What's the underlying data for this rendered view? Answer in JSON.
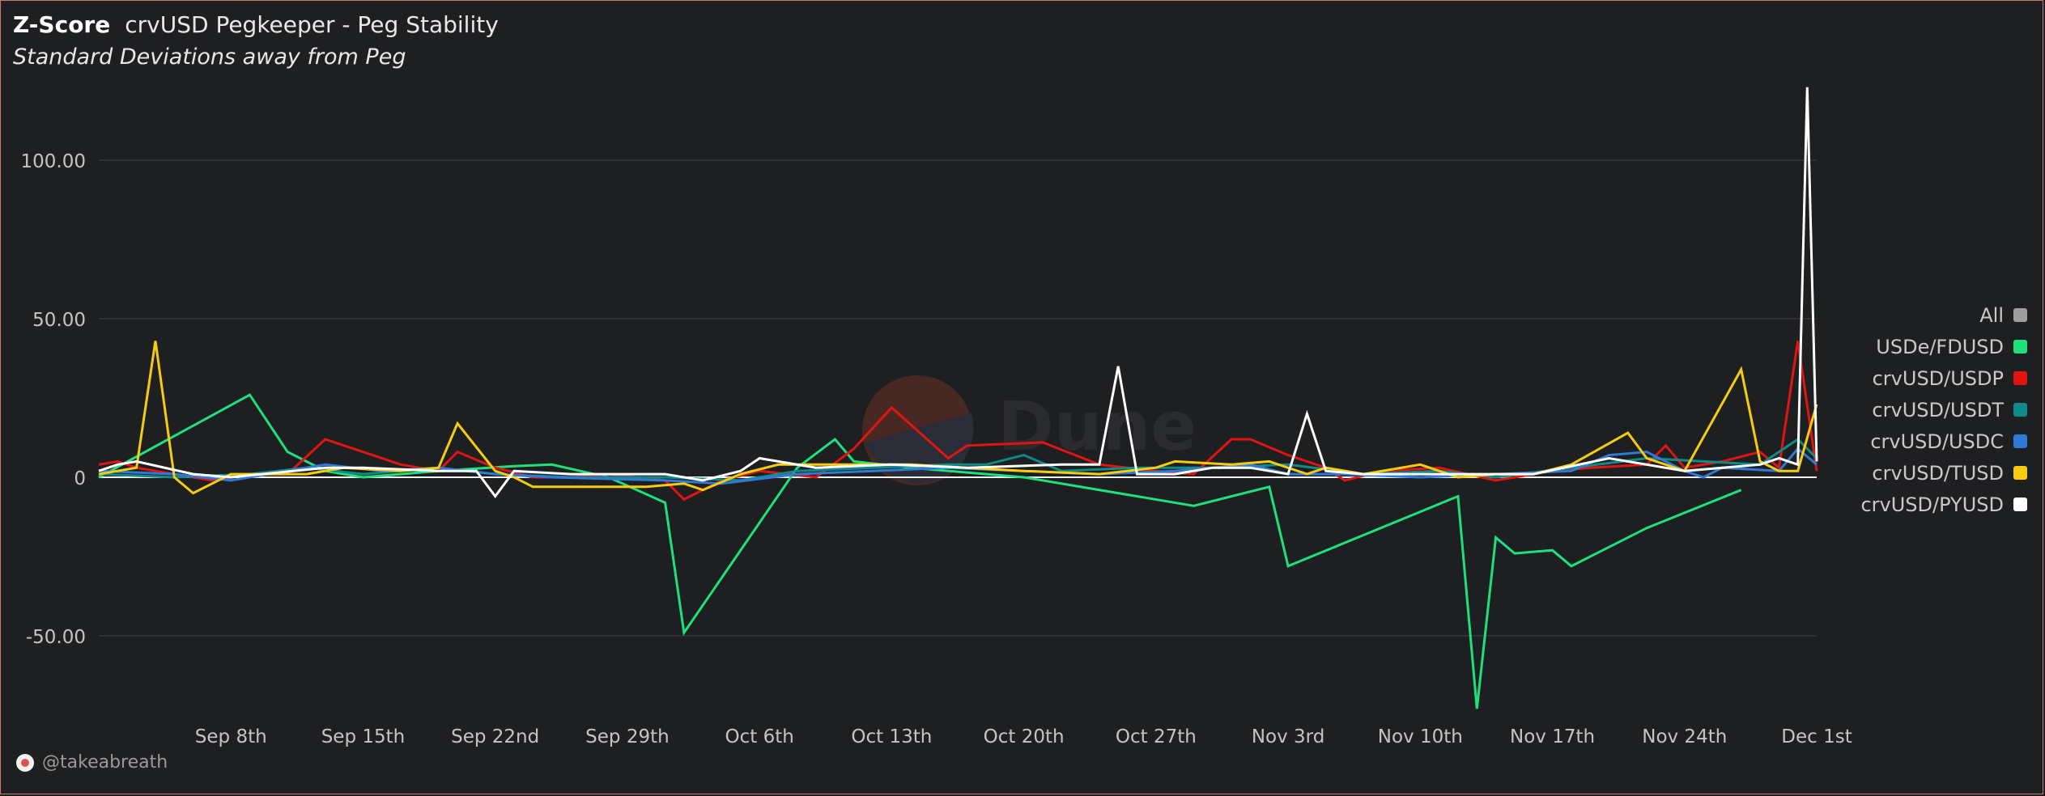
{
  "header": {
    "title_main": "Z-Score",
    "title_sub": "crvUSD Pegkeeper - Peg Stability",
    "subtitle": "Standard Deviations away from Peg"
  },
  "author": {
    "handle": "@takeabreath"
  },
  "watermark": {
    "text": "Dune"
  },
  "legend": {
    "items": [
      {
        "label": "All",
        "color": "#9e9e9e"
      },
      {
        "label": "USDe/FDUSD",
        "color": "#1fe07a"
      },
      {
        "label": "crvUSD/USDP",
        "color": "#e11414"
      },
      {
        "label": "crvUSD/USDT",
        "color": "#0e8b86"
      },
      {
        "label": "crvUSD/USDC",
        "color": "#2f79d9"
      },
      {
        "label": "crvUSD/TUSD",
        "color": "#f5cc10"
      },
      {
        "label": "crvUSD/PYUSD",
        "color": "#ffffff"
      }
    ]
  },
  "chart_data": {
    "type": "line",
    "title": "crvUSD Pegkeeper - Peg Stability",
    "subtitle": "Standard Deviations away from Peg",
    "x_type": "date",
    "xlim": [
      "2024-09-01",
      "2024-12-01"
    ],
    "ylim": [
      -75,
      125
    ],
    "y_ticks": [
      -50,
      0,
      50,
      100
    ],
    "y_tick_labels": [
      "-50.00",
      "0",
      "50.00",
      "100.00"
    ],
    "x_ticks": [
      "2024-09-08",
      "2024-09-15",
      "2024-09-22",
      "2024-09-29",
      "2024-10-06",
      "2024-10-13",
      "2024-10-20",
      "2024-10-27",
      "2024-11-03",
      "2024-11-10",
      "2024-11-17",
      "2024-11-24",
      "2024-12-01"
    ],
    "x_tick_labels": [
      "Sep 8th",
      "Sep 15th",
      "Sep 22nd",
      "Sep 29th",
      "Oct 6th",
      "Oct 13th",
      "Oct 20th",
      "Oct 27th",
      "Nov 3rd",
      "Nov 10th",
      "Nov 17th",
      "Nov 24th",
      "Dec 1st"
    ],
    "grid": true,
    "legend_position": "right",
    "series": [
      {
        "name": "USDe/FDUSD",
        "color": "#1fe07a",
        "points": [
          [
            "2024-09-01",
            0
          ],
          [
            "2024-09-09",
            26
          ],
          [
            "2024-09-11",
            8
          ],
          [
            "2024-09-13",
            2
          ],
          [
            "2024-09-15",
            0
          ],
          [
            "2024-09-19",
            2
          ],
          [
            "2024-09-23",
            3.5
          ],
          [
            "2024-09-25",
            4
          ],
          [
            "2024-09-28",
            0
          ],
          [
            "2024-10-01",
            -8
          ],
          [
            "2024-10-02",
            -49
          ],
          [
            "2024-10-08",
            3
          ],
          [
            "2024-10-10",
            12
          ],
          [
            "2024-10-11",
            5
          ],
          [
            "2024-10-14",
            3
          ],
          [
            "2024-10-20",
            0
          ],
          [
            "2024-10-29",
            -9
          ],
          [
            "2024-11-02",
            -3
          ],
          [
            "2024-11-03",
            -28
          ],
          [
            "2024-11-12",
            -6
          ],
          [
            "2024-11-13",
            -73
          ],
          [
            "2024-11-14",
            -19
          ],
          [
            "2024-11-15",
            -24
          ],
          [
            "2024-11-17",
            -23
          ],
          [
            "2024-11-18",
            -28
          ],
          [
            "2024-11-22",
            -16
          ],
          [
            "2024-11-27",
            -4
          ]
        ]
      },
      {
        "name": "crvUSD/USDP",
        "color": "#e11414",
        "points": [
          [
            "2024-09-01",
            4
          ],
          [
            "2024-09-02",
            5
          ],
          [
            "2024-09-03",
            3
          ],
          [
            "2024-09-05",
            1
          ],
          [
            "2024-09-07",
            -1
          ],
          [
            "2024-09-09",
            1
          ],
          [
            "2024-09-11",
            1
          ],
          [
            "2024-09-13",
            12
          ],
          [
            "2024-09-17",
            4
          ],
          [
            "2024-09-19",
            2
          ],
          [
            "2024-09-20",
            8
          ],
          [
            "2024-09-22",
            3
          ],
          [
            "2024-09-24",
            0
          ],
          [
            "2024-09-26",
            0
          ],
          [
            "2024-09-28",
            1
          ],
          [
            "2024-10-01",
            -1
          ],
          [
            "2024-10-02",
            -7
          ],
          [
            "2024-10-04",
            -1
          ],
          [
            "2024-10-06",
            2
          ],
          [
            "2024-10-09",
            0
          ],
          [
            "2024-10-11",
            9
          ],
          [
            "2024-10-13",
            22
          ],
          [
            "2024-10-16",
            6
          ],
          [
            "2024-10-17",
            10
          ],
          [
            "2024-10-21",
            11
          ],
          [
            "2024-10-24",
            4
          ],
          [
            "2024-10-27",
            2
          ],
          [
            "2024-10-29",
            1
          ],
          [
            "2024-10-31",
            12
          ],
          [
            "2024-11-01",
            12
          ],
          [
            "2024-11-03",
            7
          ],
          [
            "2024-11-05",
            3
          ],
          [
            "2024-11-06",
            -1
          ],
          [
            "2024-11-08",
            2
          ],
          [
            "2024-11-11",
            3
          ],
          [
            "2024-11-14",
            -1
          ],
          [
            "2024-11-17",
            2
          ],
          [
            "2024-11-19",
            3
          ],
          [
            "2024-11-22",
            4
          ],
          [
            "2024-11-23",
            10
          ],
          [
            "2024-11-24",
            3
          ],
          [
            "2024-11-26",
            5
          ],
          [
            "2024-11-28",
            8
          ],
          [
            "2024-11-29",
            3
          ],
          [
            "2024-11-30",
            43
          ],
          [
            "2024-12-01",
            2
          ]
        ]
      },
      {
        "name": "crvUSD/USDT",
        "color": "#0e8b86",
        "points": [
          [
            "2024-09-01",
            1
          ],
          [
            "2024-09-05",
            0
          ],
          [
            "2024-09-09",
            1
          ],
          [
            "2024-09-12",
            3
          ],
          [
            "2024-09-15",
            1
          ],
          [
            "2024-09-19",
            3
          ],
          [
            "2024-09-22",
            1
          ],
          [
            "2024-09-26",
            0
          ],
          [
            "2024-10-01",
            0
          ],
          [
            "2024-10-05",
            -1
          ],
          [
            "2024-10-08",
            2
          ],
          [
            "2024-10-12",
            3
          ],
          [
            "2024-10-16",
            4
          ],
          [
            "2024-10-18",
            4
          ],
          [
            "2024-10-20",
            7
          ],
          [
            "2024-10-22",
            2
          ],
          [
            "2024-10-26",
            3
          ],
          [
            "2024-10-30",
            3
          ],
          [
            "2024-11-03",
            4
          ],
          [
            "2024-11-07",
            1
          ],
          [
            "2024-11-11",
            2
          ],
          [
            "2024-11-14",
            0
          ],
          [
            "2024-11-18",
            3
          ],
          [
            "2024-11-22",
            6
          ],
          [
            "2024-11-25",
            5
          ],
          [
            "2024-11-28",
            4
          ],
          [
            "2024-11-30",
            12
          ],
          [
            "2024-12-01",
            6
          ]
        ]
      },
      {
        "name": "crvUSD/USDC",
        "color": "#2f79d9",
        "points": [
          [
            "2024-09-01",
            2
          ],
          [
            "2024-09-05",
            1
          ],
          [
            "2024-09-08",
            -1
          ],
          [
            "2024-09-11",
            2
          ],
          [
            "2024-09-13",
            4
          ],
          [
            "2024-09-16",
            2
          ],
          [
            "2024-09-19",
            3
          ],
          [
            "2024-09-22",
            1
          ],
          [
            "2024-09-25",
            0
          ],
          [
            "2024-10-01",
            -1
          ],
          [
            "2024-10-04",
            -2
          ],
          [
            "2024-10-08",
            1
          ],
          [
            "2024-10-12",
            2
          ],
          [
            "2024-10-16",
            3
          ],
          [
            "2024-10-20",
            2
          ],
          [
            "2024-10-24",
            1
          ],
          [
            "2024-10-28",
            2
          ],
          [
            "2024-11-01",
            4
          ],
          [
            "2024-11-03",
            1
          ],
          [
            "2024-11-06",
            1
          ],
          [
            "2024-11-10",
            0
          ],
          [
            "2024-11-14",
            1
          ],
          [
            "2024-11-18",
            2
          ],
          [
            "2024-11-20",
            7
          ],
          [
            "2024-11-22",
            8
          ],
          [
            "2024-11-24",
            2
          ],
          [
            "2024-11-25",
            0
          ],
          [
            "2024-11-26",
            3
          ],
          [
            "2024-11-29",
            2
          ],
          [
            "2024-11-30",
            9
          ],
          [
            "2024-12-01",
            4
          ]
        ]
      },
      {
        "name": "crvUSD/TUSD",
        "color": "#f5cc10",
        "points": [
          [
            "2024-09-01",
            1
          ],
          [
            "2024-09-03",
            3
          ],
          [
            "2024-09-04",
            43
          ],
          [
            "2024-09-05",
            0
          ],
          [
            "2024-09-06",
            -5
          ],
          [
            "2024-09-08",
            1
          ],
          [
            "2024-09-10",
            1
          ],
          [
            "2024-09-12",
            1
          ],
          [
            "2024-09-14",
            3
          ],
          [
            "2024-09-17",
            2
          ],
          [
            "2024-09-19",
            3
          ],
          [
            "2024-09-20",
            17
          ],
          [
            "2024-09-22",
            2
          ],
          [
            "2024-09-23",
            0
          ],
          [
            "2024-09-24",
            -3
          ],
          [
            "2024-09-27",
            -3
          ],
          [
            "2024-09-30",
            -3
          ],
          [
            "2024-10-02",
            -2
          ],
          [
            "2024-10-03",
            -4
          ],
          [
            "2024-10-05",
            1
          ],
          [
            "2024-10-07",
            4
          ],
          [
            "2024-10-10",
            4
          ],
          [
            "2024-10-14",
            4
          ],
          [
            "2024-10-20",
            2
          ],
          [
            "2024-10-24",
            1
          ],
          [
            "2024-10-27",
            3
          ],
          [
            "2024-10-28",
            5
          ],
          [
            "2024-10-31",
            4
          ],
          [
            "2024-11-02",
            5
          ],
          [
            "2024-11-04",
            1
          ],
          [
            "2024-11-05",
            3
          ],
          [
            "2024-11-07",
            1
          ],
          [
            "2024-11-10",
            4
          ],
          [
            "2024-11-12",
            0
          ],
          [
            "2024-11-14",
            1
          ],
          [
            "2024-11-16",
            1
          ],
          [
            "2024-11-18",
            4
          ],
          [
            "2024-11-21",
            14
          ],
          [
            "2024-11-22",
            6
          ],
          [
            "2024-11-24",
            2
          ],
          [
            "2024-11-27",
            34
          ],
          [
            "2024-11-28",
            5
          ],
          [
            "2024-11-29",
            2
          ],
          [
            "2024-11-30",
            2
          ],
          [
            "2024-12-01",
            23
          ]
        ]
      },
      {
        "name": "crvUSD/PYUSD",
        "color": "#ffffff",
        "points": [
          [
            "2024-09-01",
            2
          ],
          [
            "2024-09-02",
            4
          ],
          [
            "2024-09-03",
            5
          ],
          [
            "2024-09-06",
            1
          ],
          [
            "2024-09-08",
            0
          ],
          [
            "2024-09-13",
            3
          ],
          [
            "2024-09-15",
            3
          ],
          [
            "2024-09-19",
            2
          ],
          [
            "2024-09-21",
            2
          ],
          [
            "2024-09-22",
            -6
          ],
          [
            "2024-09-23",
            2
          ],
          [
            "2024-09-26",
            1
          ],
          [
            "2024-09-29",
            1
          ],
          [
            "2024-10-01",
            1
          ],
          [
            "2024-10-03",
            -1
          ],
          [
            "2024-10-05",
            2
          ],
          [
            "2024-10-06",
            6
          ],
          [
            "2024-10-09",
            3
          ],
          [
            "2024-10-13",
            4
          ],
          [
            "2024-10-17",
            3
          ],
          [
            "2024-10-22",
            4
          ],
          [
            "2024-10-24",
            4
          ],
          [
            "2024-10-25",
            35
          ],
          [
            "2024-10-26",
            1
          ],
          [
            "2024-10-28",
            1
          ],
          [
            "2024-10-30",
            3
          ],
          [
            "2024-11-01",
            3
          ],
          [
            "2024-11-03",
            1
          ],
          [
            "2024-11-04",
            20
          ],
          [
            "2024-11-05",
            2
          ],
          [
            "2024-11-07",
            1
          ],
          [
            "2024-11-11",
            1
          ],
          [
            "2024-11-14",
            1
          ],
          [
            "2024-11-16",
            1
          ],
          [
            "2024-11-20",
            6
          ],
          [
            "2024-11-22",
            4
          ],
          [
            "2024-11-24",
            2
          ],
          [
            "2024-11-26",
            3
          ],
          [
            "2024-11-28",
            4
          ],
          [
            "2024-11-29",
            6
          ],
          [
            "2024-11-30",
            4
          ],
          [
            "2024-11-30T12:00",
            123
          ],
          [
            "2024-12-01",
            5
          ]
        ]
      }
    ]
  }
}
